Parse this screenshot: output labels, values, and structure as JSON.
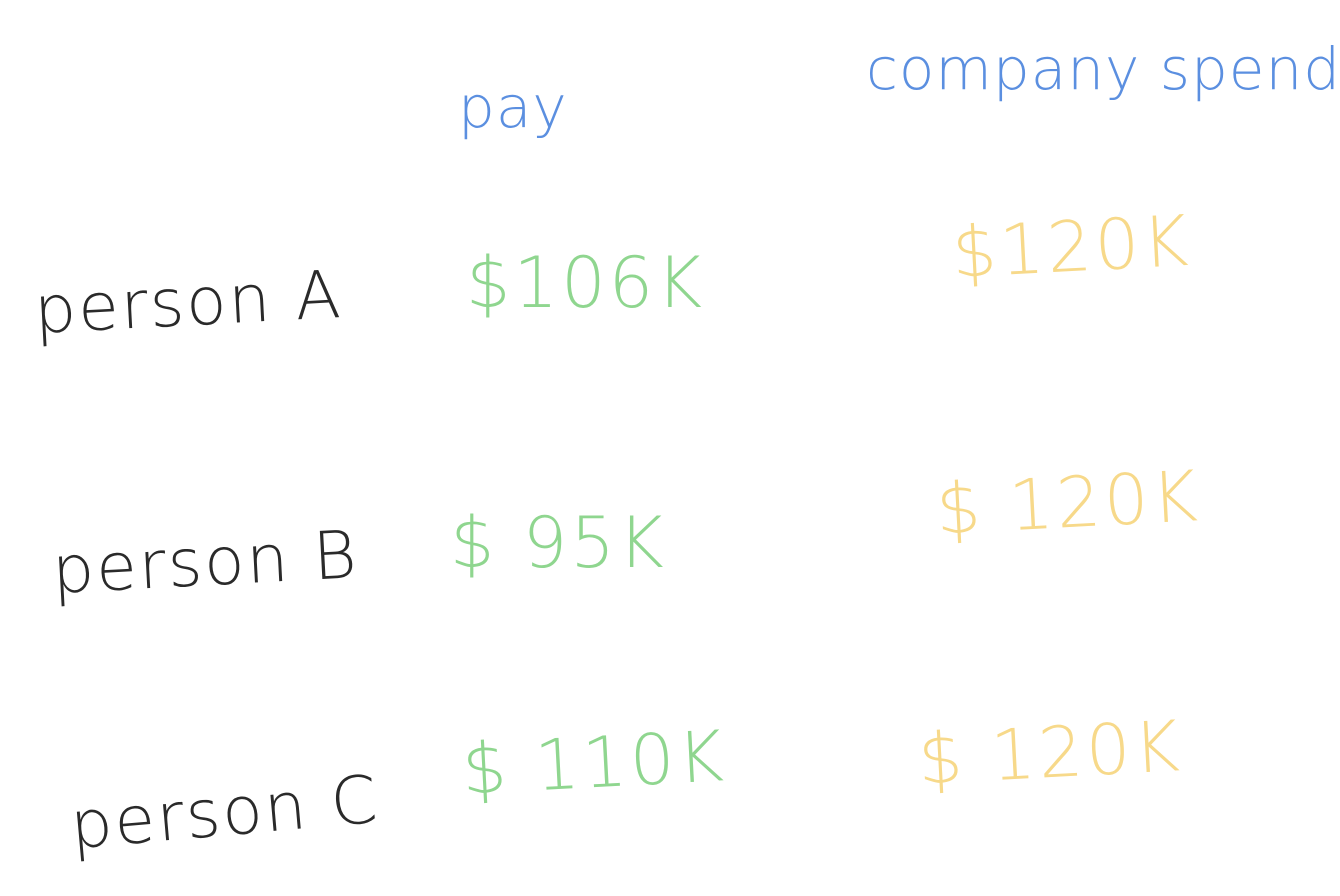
{
  "colors": {
    "header": "#5b8fe0",
    "label": "#2a2a2a",
    "pay": "#8fd68f",
    "spend": "#f7d98a"
  },
  "headers": {
    "pay": "pay",
    "company_spends": "company spends"
  },
  "rows": [
    {
      "label": "person A",
      "pay": "$106K",
      "spend": "$120K"
    },
    {
      "label": "person B",
      "pay": "$ 95K",
      "spend": "$ 120K"
    },
    {
      "label": "person C",
      "pay": "$ 110K",
      "spend": "$ 120K"
    }
  ]
}
